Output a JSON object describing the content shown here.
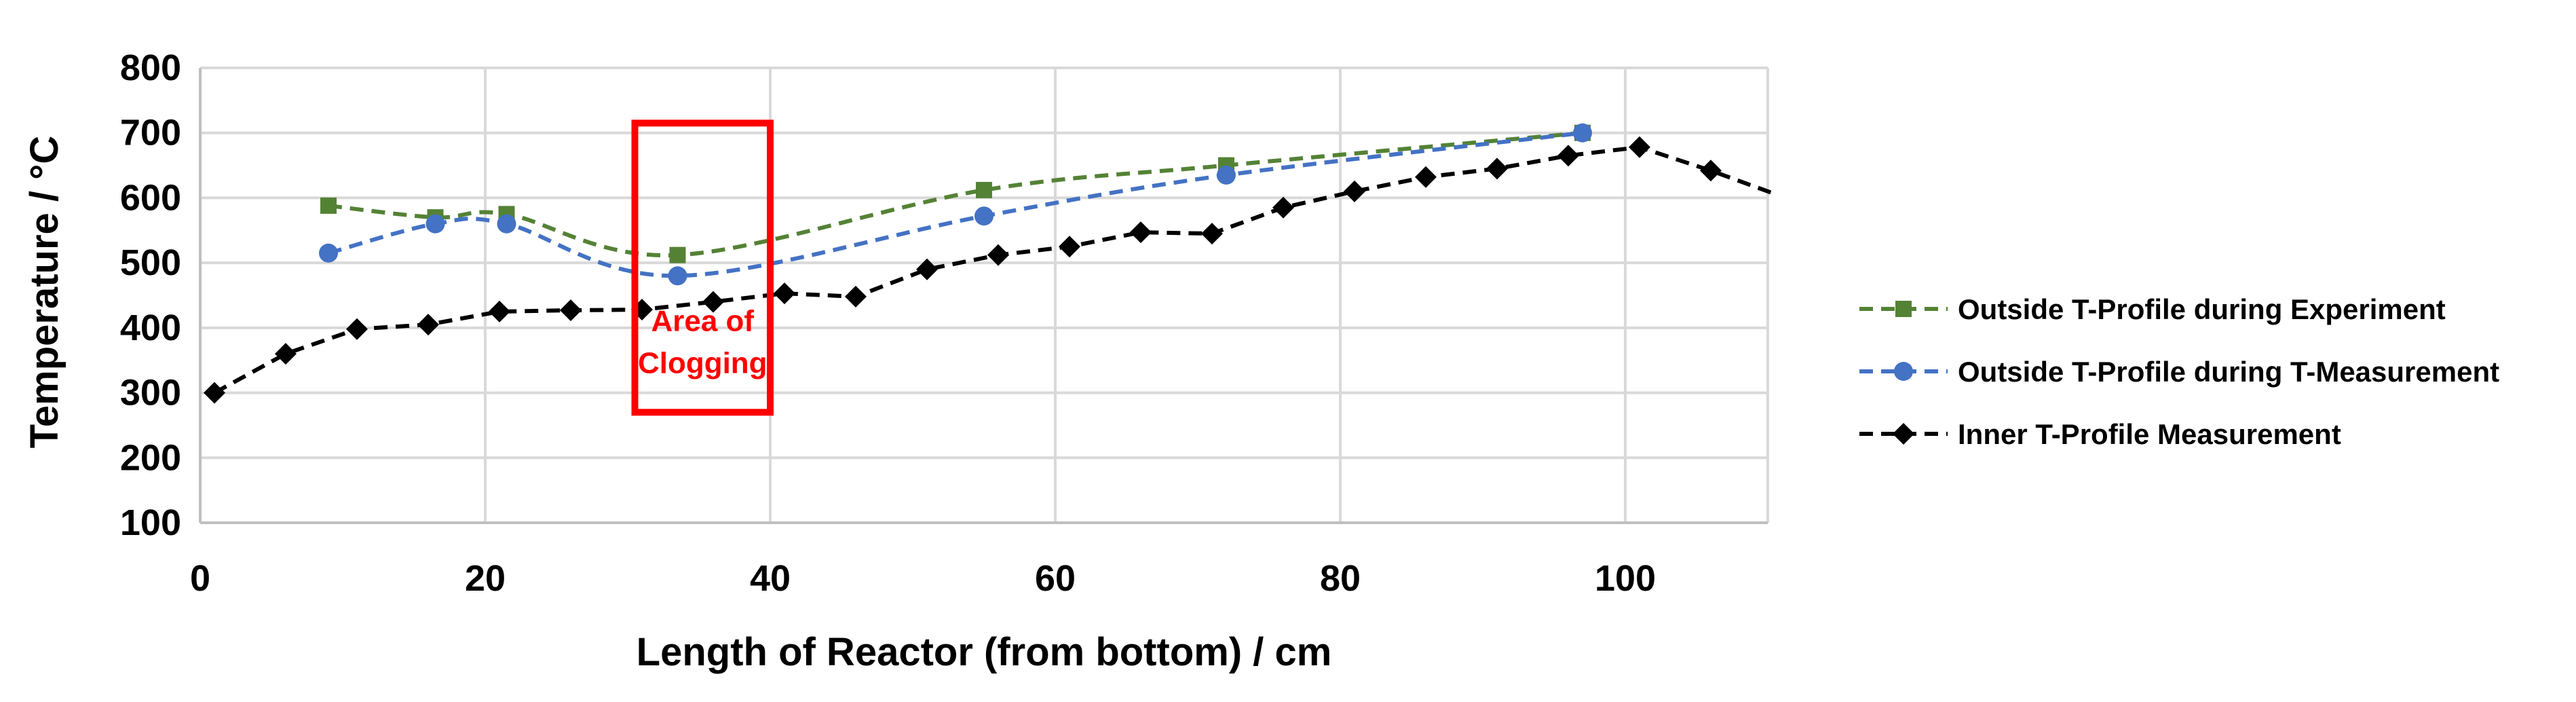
{
  "chart_data": {
    "type": "line",
    "xlabel": "Length of Reactor (from bottom) / cm",
    "ylabel": "Temperature / °C",
    "xlim": [
      0,
      110
    ],
    "ylim": [
      100,
      800
    ],
    "xticks": [
      0,
      20,
      40,
      60,
      80,
      100
    ],
    "yticks": [
      100,
      200,
      300,
      400,
      500,
      600,
      700,
      800
    ],
    "grid": true,
    "legend_position": "right",
    "series": [
      {
        "name": "Outside T-Profile during Experiment",
        "color": "#548235",
        "marker": "square",
        "dashed": true,
        "points": [
          [
            9,
            588
          ],
          [
            16.5,
            570
          ],
          [
            21.5,
            575
          ],
          [
            33.5,
            512
          ],
          [
            55,
            612
          ],
          [
            72,
            650
          ],
          [
            97,
            700
          ]
        ]
      },
      {
        "name": "Outside T-Profile during T-Measurement",
        "color": "#4472c4",
        "marker": "circle",
        "dashed": true,
        "points": [
          [
            9,
            515
          ],
          [
            16.5,
            560
          ],
          [
            21.5,
            560
          ],
          [
            33.5,
            480
          ],
          [
            55,
            572
          ],
          [
            72,
            635
          ],
          [
            97,
            700
          ]
        ]
      },
      {
        "name": "Inner T-Profile Measurement",
        "color": "#000000",
        "marker": "diamond",
        "dashed": true,
        "points": [
          [
            1,
            300
          ],
          [
            6,
            360
          ],
          [
            11,
            398
          ],
          [
            16,
            405
          ],
          [
            21,
            425
          ],
          [
            26,
            427
          ],
          [
            31,
            428
          ],
          [
            36,
            440
          ],
          [
            41,
            453
          ],
          [
            46,
            448
          ],
          [
            51,
            490
          ],
          [
            56,
            512
          ],
          [
            61,
            525
          ],
          [
            66,
            547
          ],
          [
            71,
            545
          ],
          [
            76,
            585
          ],
          [
            81,
            610
          ],
          [
            86,
            632
          ],
          [
            91,
            645
          ],
          [
            96,
            665
          ],
          [
            101,
            678
          ],
          [
            106,
            642
          ],
          [
            111,
            602
          ]
        ]
      }
    ],
    "annotation": {
      "text_lines": [
        "Area of",
        "Clogging"
      ],
      "color": "#ff0000",
      "x_range": [
        30.5,
        40
      ],
      "y_range": [
        270,
        715
      ]
    }
  }
}
